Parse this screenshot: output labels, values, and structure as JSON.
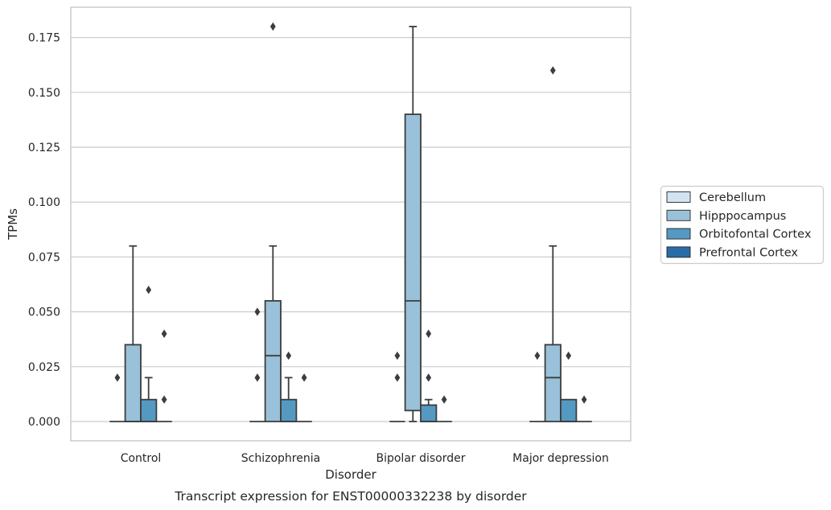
{
  "chart_data": {
    "type": "box",
    "caption": "Transcript expression for ENST00000332238 by disorder",
    "xlabel": "Disorder",
    "ylabel": "TPMs",
    "ylim": [
      -0.0088,
      0.1888
    ],
    "yticks": [
      0.0,
      0.025,
      0.05,
      0.075,
      0.1,
      0.125,
      0.15,
      0.175
    ],
    "ytick_labels": [
      "0.000",
      "0.025",
      "0.050",
      "0.075",
      "0.100",
      "0.125",
      "0.150",
      "0.175"
    ],
    "grid": "horizontal",
    "legend_position": "right",
    "categories": [
      "Control",
      "Schizophrenia",
      "Bipolar disorder",
      "Major depression"
    ],
    "series": [
      {
        "name": "Cerebellum",
        "color": "#d3e3f1",
        "boxes": [
          {
            "q1": 0,
            "median": 0,
            "q3": 0,
            "whisker_low": 0,
            "whisker_high": 0,
            "outliers": [
              0.02
            ]
          },
          {
            "q1": 0,
            "median": 0,
            "q3": 0,
            "whisker_low": 0,
            "whisker_high": 0,
            "outliers": [
              0.02,
              0.05
            ]
          },
          {
            "q1": 0,
            "median": 0,
            "q3": 0,
            "whisker_low": 0,
            "whisker_high": 0,
            "outliers": [
              0.02,
              0.03
            ]
          },
          {
            "q1": 0,
            "median": 0,
            "q3": 0,
            "whisker_low": 0,
            "whisker_high": 0,
            "outliers": [
              0.03
            ]
          }
        ]
      },
      {
        "name": "Hipppocampus",
        "color": "#99c1d9",
        "boxes": [
          {
            "q1": 0,
            "median": 0,
            "q3": 0.035,
            "whisker_low": 0,
            "whisker_high": 0.08,
            "outliers": []
          },
          {
            "q1": 0,
            "median": 0.03,
            "q3": 0.055,
            "whisker_low": 0,
            "whisker_high": 0.08,
            "outliers": [
              0.18
            ]
          },
          {
            "q1": 0.005,
            "median": 0.055,
            "q3": 0.14,
            "whisker_low": 0,
            "whisker_high": 0.18,
            "outliers": []
          },
          {
            "q1": 0,
            "median": 0.02,
            "q3": 0.035,
            "whisker_low": 0,
            "whisker_high": 0.08,
            "outliers": [
              0.16
            ]
          }
        ]
      },
      {
        "name": "Orbitofontal Cortex",
        "color": "#5499c2",
        "boxes": [
          {
            "q1": 0,
            "median": 0,
            "q3": 0.01,
            "whisker_low": 0,
            "whisker_high": 0.02,
            "outliers": [
              0.06
            ]
          },
          {
            "q1": 0,
            "median": 0,
            "q3": 0.01,
            "whisker_low": 0,
            "whisker_high": 0.02,
            "outliers": [
              0.03
            ]
          },
          {
            "q1": 0,
            "median": 0,
            "q3": 0.0075,
            "whisker_low": 0,
            "whisker_high": 0.01,
            "outliers": [
              0.02,
              0.04
            ]
          },
          {
            "q1": 0,
            "median": 0,
            "q3": 0.01,
            "whisker_low": 0,
            "whisker_high": 0.01,
            "outliers": [
              0.03
            ]
          }
        ]
      },
      {
        "name": "Prefrontal Cortex",
        "color": "#2a6ca8",
        "boxes": [
          {
            "q1": 0,
            "median": 0,
            "q3": 0,
            "whisker_low": 0,
            "whisker_high": 0,
            "outliers": [
              0.01,
              0.04
            ]
          },
          {
            "q1": 0,
            "median": 0,
            "q3": 0,
            "whisker_low": 0,
            "whisker_high": 0,
            "outliers": [
              0.02
            ]
          },
          {
            "q1": 0,
            "median": 0,
            "q3": 0,
            "whisker_low": 0,
            "whisker_high": 0,
            "outliers": [
              0.01
            ]
          },
          {
            "q1": 0,
            "median": 0,
            "q3": 0,
            "whisker_low": 0,
            "whisker_high": 0,
            "outliers": [
              0.01
            ]
          }
        ]
      }
    ]
  }
}
